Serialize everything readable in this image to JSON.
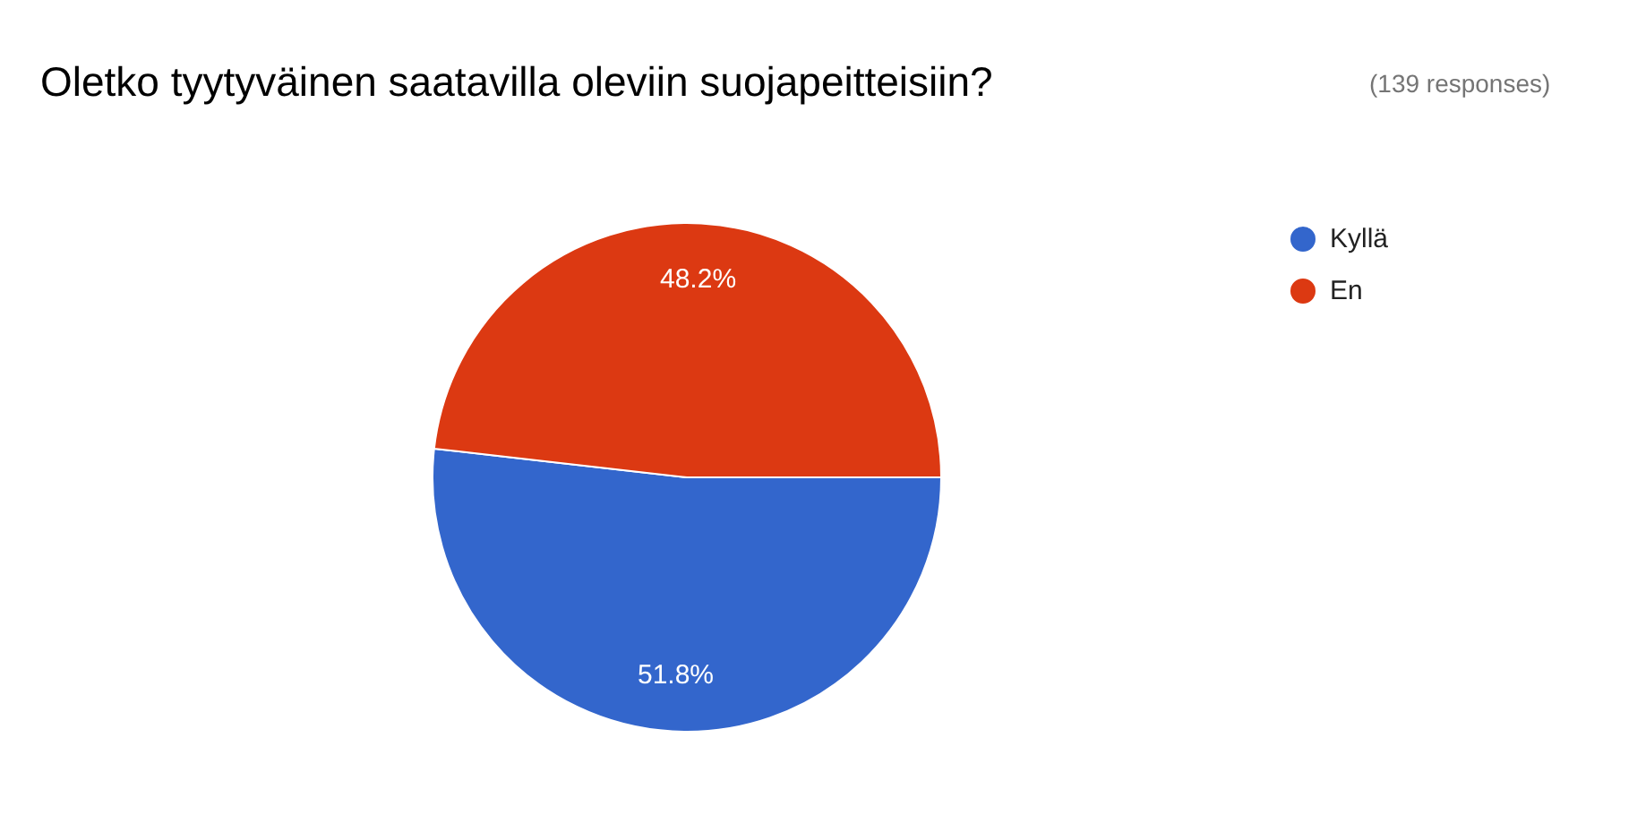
{
  "chart_data": {
    "type": "pie",
    "title": "Oletko tyytyväinen saatavilla oleviin suojapeitteisiin?",
    "subtitle": "(139 responses)",
    "categories": [
      "Kyllä",
      "En"
    ],
    "values": [
      51.8,
      48.2
    ],
    "colors": [
      "#3366cc",
      "#dc3912"
    ],
    "value_labels": [
      "51.8%",
      "48.2%"
    ],
    "legend": "right"
  }
}
